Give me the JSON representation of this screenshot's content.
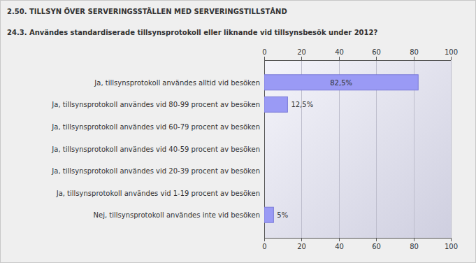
{
  "chart_data": {
    "type": "bar",
    "orientation": "horizontal",
    "title": "2.50. TILLSYN ÖVER SERVERINGSSTÄLLEN MED SERVERINGSTILLSTÅND",
    "subtitle": "24.3. Användes standardiserade tillsynsprotokoll eller liknande vid tillsynsbesök under 2012?",
    "categories": [
      "Ja, tillsynsprotokoll användes alltid vid besöken",
      "Ja, tillsynsprotokoll användes vid 80-99 procent av besöken",
      "Ja, tillsynsprotokoll användes vid 60-79 procent av besöken",
      "Ja, tillsynsprotokoll användes vid 40-59 procent av besöken",
      "Ja, tillsynsprotokoll användes vid 20-39 procent av besöken",
      "Ja, tillsynsprotokoll användes vid 1-19 procent av besöken",
      "Nej, tillsynsprotokoll användes inte vid besöken"
    ],
    "values": [
      82.5,
      12.5,
      0,
      0,
      0,
      0,
      5
    ],
    "value_labels": [
      "82,5%",
      "12,5%",
      null,
      null,
      null,
      null,
      "5%"
    ],
    "color": "#9a9af5",
    "xlim": [
      0,
      100
    ],
    "xticks": [
      0,
      20,
      40,
      60,
      80,
      100
    ],
    "grid": true,
    "data_labels": true
  }
}
